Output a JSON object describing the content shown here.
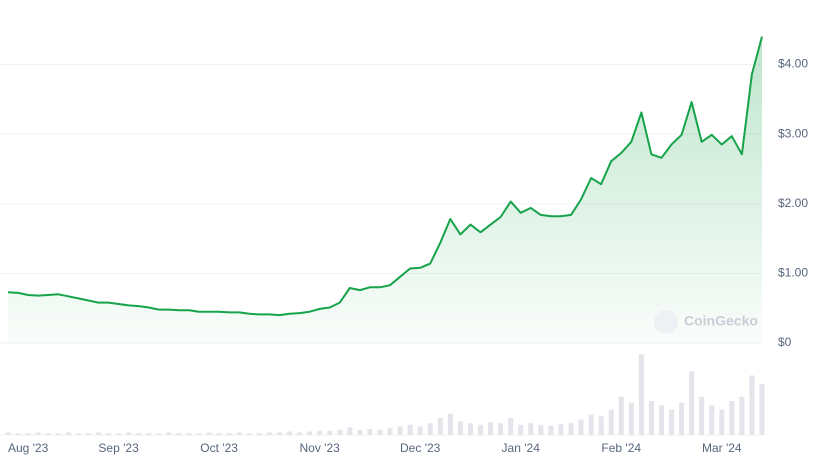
{
  "chart_data": {
    "type": "line",
    "watermark": "CoinGecko",
    "categories": [
      null,
      null,
      "Aug '23",
      null,
      null,
      null,
      null,
      null,
      null,
      null,
      null,
      "Sep '23",
      null,
      null,
      null,
      null,
      null,
      null,
      null,
      null,
      null,
      "Oct '23",
      null,
      null,
      null,
      null,
      null,
      null,
      null,
      null,
      null,
      "Nov '23",
      null,
      null,
      null,
      null,
      null,
      null,
      null,
      null,
      null,
      "Dec '23",
      null,
      null,
      null,
      null,
      null,
      null,
      null,
      null,
      null,
      "Jan '24",
      null,
      null,
      null,
      null,
      null,
      null,
      null,
      null,
      null,
      "Feb '24",
      null,
      null,
      null,
      null,
      null,
      null,
      null,
      null,
      null,
      "Mar '24",
      null,
      null,
      null,
      null
    ],
    "series": [
      {
        "name": "Price",
        "color": "#16a34a",
        "values": [
          0.73,
          0.72,
          0.69,
          0.68,
          0.69,
          0.7,
          0.67,
          0.64,
          0.61,
          0.58,
          0.58,
          0.56,
          0.54,
          0.53,
          0.51,
          0.48,
          0.48,
          0.47,
          0.47,
          0.45,
          0.45,
          0.45,
          0.44,
          0.44,
          0.42,
          0.41,
          0.41,
          0.4,
          0.42,
          0.43,
          0.45,
          0.49,
          0.51,
          0.58,
          0.79,
          0.76,
          0.8,
          0.8,
          0.83,
          0.95,
          1.07,
          1.08,
          1.14,
          1.44,
          1.78,
          1.56,
          1.7,
          1.59,
          1.7,
          1.81,
          2.03,
          1.87,
          1.94,
          1.84,
          1.82,
          1.82,
          1.84,
          2.06,
          2.37,
          2.28,
          2.61,
          2.73,
          2.89,
          3.31,
          2.71,
          2.66,
          2.85,
          2.99,
          3.46,
          2.89,
          2.99,
          2.85,
          2.97,
          2.71,
          3.86,
          4.4
        ]
      },
      {
        "name": "Volume",
        "color": "#e3e5ea",
        "axis": "y2",
        "values": [
          3,
          2,
          2,
          3,
          2,
          2,
          3,
          2,
          2,
          3,
          2,
          2,
          3,
          2,
          2,
          2,
          3,
          2,
          2,
          2,
          3,
          2,
          2,
          3,
          2,
          2,
          3,
          3,
          4,
          3,
          4,
          5,
          5,
          6,
          9,
          6,
          7,
          6,
          8,
          10,
          12,
          10,
          14,
          20,
          25,
          16,
          14,
          12,
          15,
          14,
          20,
          12,
          14,
          12,
          11,
          13,
          14,
          18,
          24,
          22,
          30,
          45,
          38,
          95,
          40,
          35,
          30,
          38,
          75,
          45,
          35,
          30,
          40,
          45,
          70,
          60
        ]
      }
    ],
    "ylim": [
      0,
      4.4
    ],
    "yticks": [
      {
        "value": 0,
        "label": "$0"
      },
      {
        "value": 1,
        "label": "$1.00"
      },
      {
        "value": 2,
        "label": "$2.00"
      },
      {
        "value": 3,
        "label": "$3.00"
      },
      {
        "value": 4,
        "label": "$4.00"
      }
    ],
    "y2lim": [
      0,
      100
    ],
    "grid": true
  }
}
